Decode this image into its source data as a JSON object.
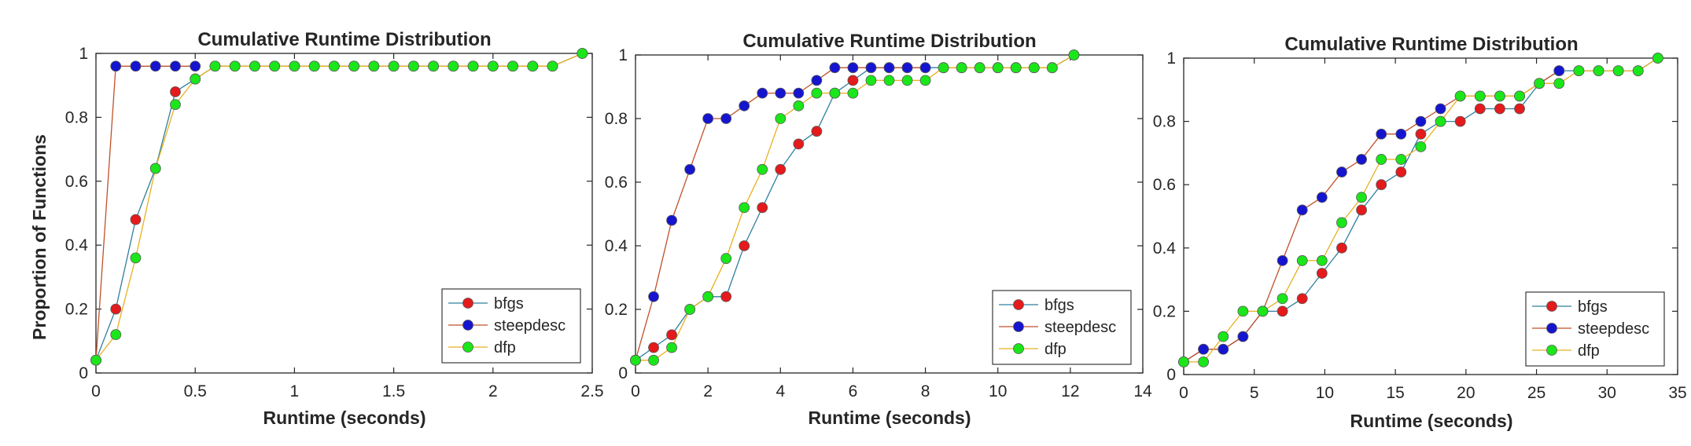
{
  "colors": {
    "bfgs_marker": "#e41a1c",
    "steepdesc_marker": "#1515cf",
    "dfp_marker": "#1ae61a",
    "bfgs_line": "#2f7f9f",
    "steepdesc_line": "#c0502a",
    "dfp_line": "#e8b020",
    "marker_edge": "#5a5a5a",
    "axis": "#262626"
  },
  "chart_data": [
    {
      "type": "line",
      "title": "Cumulative Runtime Distribution",
      "xlabel": "Runtime (seconds)",
      "ylabel": "Proportion of Functions",
      "xlim": [
        0,
        2.5
      ],
      "ylim": [
        0,
        1
      ],
      "xticks": [
        0,
        0.5,
        1,
        1.5,
        2,
        2.5
      ],
      "xtick_labels": [
        "0",
        "0.5",
        "1",
        "1.5",
        "2",
        "2.5"
      ],
      "yticks": [
        0,
        0.2,
        0.4,
        0.6,
        0.8,
        1
      ],
      "ytick_labels": [
        "0",
        "0.2",
        "0.4",
        "0.6",
        "0.8",
        "1"
      ],
      "legend": "bottom-right",
      "grid": false,
      "series": [
        {
          "name": "bfgs",
          "x": [
            0,
            0.1,
            0.2,
            0.3,
            0.4,
            0.5,
            0.6,
            0.7,
            0.8,
            0.9,
            1.0,
            1.1,
            1.2,
            1.3,
            1.4,
            1.5,
            1.6,
            1.7,
            1.8,
            1.9,
            2.0,
            2.1,
            2.2,
            2.3,
            2.45
          ],
          "y": [
            0.04,
            0.2,
            0.48,
            0.64,
            0.88,
            0.92,
            0.96,
            0.96,
            0.96,
            0.96,
            0.96,
            0.96,
            0.96,
            0.96,
            0.96,
            0.96,
            0.96,
            0.96,
            0.96,
            0.96,
            0.96,
            0.96,
            0.96,
            0.96,
            1.0
          ]
        },
        {
          "name": "steepdesc",
          "x": [
            0,
            0.1,
            0.2,
            0.3,
            0.4,
            0.5
          ],
          "y": [
            0.04,
            0.96,
            0.96,
            0.96,
            0.96,
            0.96
          ]
        },
        {
          "name": "dfp",
          "x": [
            0,
            0.1,
            0.2,
            0.3,
            0.4,
            0.5,
            0.6,
            0.7,
            0.8,
            0.9,
            1.0,
            1.1,
            1.2,
            1.3,
            1.4,
            1.5,
            1.6,
            1.7,
            1.8,
            1.9,
            2.0,
            2.1,
            2.2,
            2.3,
            2.45
          ],
          "y": [
            0.04,
            0.12,
            0.36,
            0.64,
            0.84,
            0.92,
            0.96,
            0.96,
            0.96,
            0.96,
            0.96,
            0.96,
            0.96,
            0.96,
            0.96,
            0.96,
            0.96,
            0.96,
            0.96,
            0.96,
            0.96,
            0.96,
            0.96,
            0.96,
            1.0
          ]
        }
      ]
    },
    {
      "type": "line",
      "title": "Cumulative Runtime Distribution",
      "xlabel": "Runtime (seconds)",
      "ylabel": "",
      "xlim": [
        0,
        14
      ],
      "ylim": [
        0,
        1
      ],
      "xticks": [
        0,
        2,
        4,
        6,
        8,
        10,
        12,
        14
      ],
      "xtick_labels": [
        "0",
        "2",
        "4",
        "6",
        "8",
        "10",
        "12",
        "14"
      ],
      "yticks": [
        0,
        0.2,
        0.4,
        0.6,
        0.8,
        1
      ],
      "ytick_labels": [
        "0",
        "0.2",
        "0.4",
        "0.6",
        "0.8",
        "1"
      ],
      "legend": "bottom-right",
      "grid": false,
      "series": [
        {
          "name": "bfgs",
          "x": [
            0,
            0.5,
            1,
            1.5,
            2,
            2.5,
            3,
            3.5,
            4,
            4.5,
            5,
            5.5,
            6,
            6.5,
            7,
            7.5,
            8,
            8.5,
            9,
            9.5,
            10,
            10.5,
            11,
            11.5,
            12.1
          ],
          "y": [
            0.04,
            0.08,
            0.12,
            0.2,
            0.24,
            0.24,
            0.4,
            0.52,
            0.64,
            0.72,
            0.76,
            0.88,
            0.92,
            0.96,
            0.96,
            0.96,
            0.96,
            0.96,
            0.96,
            0.96,
            0.96,
            0.96,
            0.96,
            0.96,
            1.0
          ]
        },
        {
          "name": "steepdesc",
          "x": [
            0,
            0.5,
            1,
            1.5,
            2,
            2.5,
            3,
            3.5,
            4,
            4.5,
            5,
            5.5,
            6,
            6.5,
            7,
            7.5,
            8
          ],
          "y": [
            0.04,
            0.24,
            0.48,
            0.64,
            0.8,
            0.8,
            0.84,
            0.88,
            0.88,
            0.88,
            0.92,
            0.96,
            0.96,
            0.96,
            0.96,
            0.96,
            0.96
          ]
        },
        {
          "name": "dfp",
          "x": [
            0,
            0.5,
            1,
            1.5,
            2,
            2.5,
            3,
            3.5,
            4,
            4.5,
            5,
            5.5,
            6,
            6.5,
            7,
            7.5,
            8,
            8.5,
            9,
            9.5,
            10,
            10.5,
            11,
            11.5,
            12.1
          ],
          "y": [
            0.04,
            0.04,
            0.08,
            0.2,
            0.24,
            0.36,
            0.52,
            0.64,
            0.8,
            0.84,
            0.88,
            0.88,
            0.88,
            0.92,
            0.92,
            0.92,
            0.92,
            0.96,
            0.96,
            0.96,
            0.96,
            0.96,
            0.96,
            0.96,
            1.0
          ]
        }
      ]
    },
    {
      "type": "line",
      "title": "Cumulative Runtime Distribution",
      "xlabel": "Runtime (seconds)",
      "ylabel": "",
      "xlim": [
        0,
        35
      ],
      "ylim": [
        0,
        1
      ],
      "xticks": [
        0,
        5,
        10,
        15,
        20,
        25,
        30,
        35
      ],
      "xtick_labels": [
        "0",
        "5",
        "10",
        "15",
        "20",
        "25",
        "30",
        "35"
      ],
      "yticks": [
        0,
        0.2,
        0.4,
        0.6,
        0.8,
        1
      ],
      "ytick_labels": [
        "0",
        "0.2",
        "0.4",
        "0.6",
        "0.8",
        "1"
      ],
      "legend": "bottom-right",
      "grid": false,
      "series": [
        {
          "name": "bfgs",
          "x": [
            0,
            1.4,
            2.8,
            4.2,
            5.6,
            7.0,
            8.4,
            9.8,
            11.2,
            12.6,
            14.0,
            15.4,
            16.8,
            18.2,
            19.6,
            21.0,
            22.4,
            23.8,
            25.2,
            26.6,
            28.0,
            29.4,
            30.8,
            32.2,
            33.6
          ],
          "y": [
            0.04,
            0.08,
            0.08,
            0.12,
            0.2,
            0.2,
            0.24,
            0.32,
            0.4,
            0.52,
            0.6,
            0.64,
            0.76,
            0.8,
            0.8,
            0.84,
            0.84,
            0.84,
            0.92,
            0.96,
            0.96,
            0.96,
            0.96,
            0.96,
            1.0
          ]
        },
        {
          "name": "steepdesc",
          "x": [
            0,
            1.4,
            2.8,
            4.2,
            5.6,
            7.0,
            8.4,
            9.8,
            11.2,
            12.6,
            14.0,
            15.4,
            16.8,
            18.2,
            19.6,
            21.0,
            22.4,
            23.8,
            25.2,
            26.6
          ],
          "y": [
            0.04,
            0.08,
            0.08,
            0.12,
            0.2,
            0.36,
            0.52,
            0.56,
            0.64,
            0.68,
            0.76,
            0.76,
            0.8,
            0.84,
            0.88,
            0.88,
            0.88,
            0.88,
            0.92,
            0.96
          ]
        },
        {
          "name": "dfp",
          "x": [
            0,
            1.4,
            2.8,
            4.2,
            5.6,
            7.0,
            8.4,
            9.8,
            11.2,
            12.6,
            14.0,
            15.4,
            16.8,
            18.2,
            19.6,
            21.0,
            22.4,
            23.8,
            25.2,
            26.6,
            28.0,
            29.4,
            30.8,
            32.2,
            33.6
          ],
          "y": [
            0.04,
            0.04,
            0.12,
            0.2,
            0.2,
            0.24,
            0.36,
            0.36,
            0.48,
            0.56,
            0.68,
            0.68,
            0.72,
            0.8,
            0.88,
            0.88,
            0.88,
            0.88,
            0.92,
            0.92,
            0.96,
            0.96,
            0.96,
            0.96,
            1.0
          ]
        }
      ]
    }
  ]
}
